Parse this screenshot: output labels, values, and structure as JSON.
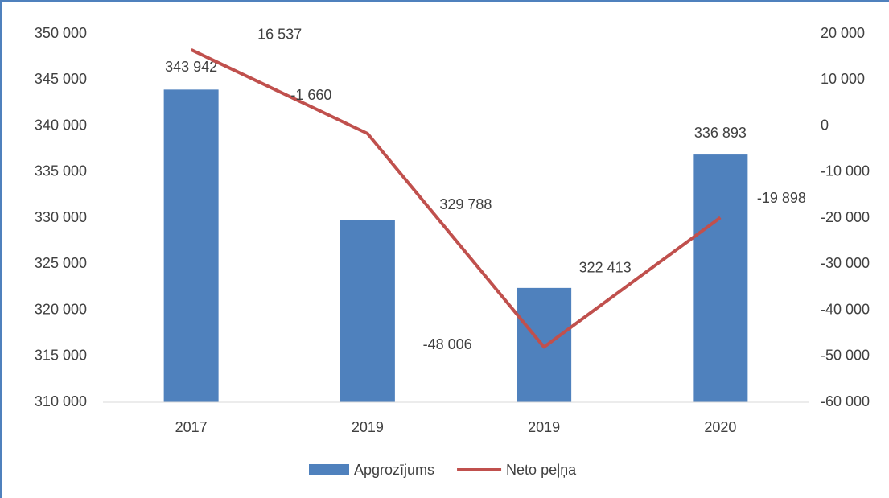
{
  "chart_data": {
    "type": "bar",
    "categories": [
      "2017",
      "2019",
      "2019",
      "2020"
    ],
    "series": [
      {
        "name": "Apgrozījums",
        "type": "bar",
        "color": "#4f81bd",
        "values": [
          343942,
          329788,
          322413,
          336893
        ],
        "value_labels": [
          "343 942",
          "329 788",
          "322 413",
          "336 893"
        ]
      },
      {
        "name": "Neto peļņa",
        "type": "line",
        "axis": "y2",
        "color": "#c0504d",
        "values": [
          16537,
          -1660,
          -48006,
          -19898
        ],
        "value_labels": [
          "16 537",
          "-1 660",
          "-48 006",
          "-19 898"
        ]
      }
    ],
    "ylim": [
      310000,
      350000
    ],
    "yticks": [
      {
        "value": 310000,
        "label": "310 000"
      },
      {
        "value": 315000,
        "label": "315 000"
      },
      {
        "value": 320000,
        "label": "320 000"
      },
      {
        "value": 325000,
        "label": "325 000"
      },
      {
        "value": 330000,
        "label": "330 000"
      },
      {
        "value": 335000,
        "label": "335 000"
      },
      {
        "value": 340000,
        "label": "340 000"
      },
      {
        "value": 345000,
        "label": "345 000"
      },
      {
        "value": 350000,
        "label": "350 000"
      }
    ],
    "y2lim": [
      -60000,
      20000
    ],
    "y2ticks": [
      {
        "value": -60000,
        "label": "-60 000"
      },
      {
        "value": -50000,
        "label": "-50 000"
      },
      {
        "value": -40000,
        "label": "-40 000"
      },
      {
        "value": -30000,
        "label": "-30 000"
      },
      {
        "value": -20000,
        "label": "-20 000"
      },
      {
        "value": -10000,
        "label": "-10 000"
      },
      0,
      {
        "value": 10000,
        "label": "10 000"
      },
      {
        "value": 20000,
        "label": "20 000"
      }
    ],
    "legend": "bottom"
  }
}
